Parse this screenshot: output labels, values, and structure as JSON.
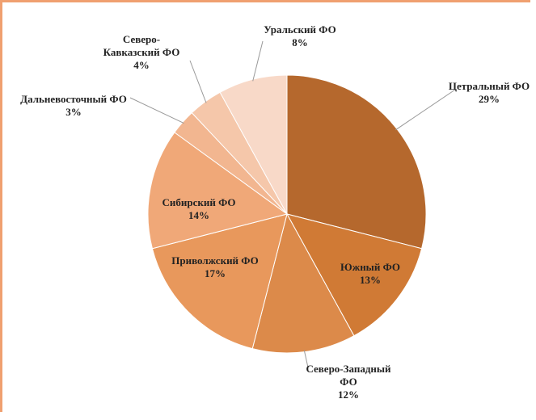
{
  "chart_data": {
    "type": "pie",
    "categories": [
      "Цетральный ФО",
      "Южный ФО",
      "Северо-Западный ФО",
      "Приволжский ФО",
      "Сибирский ФО",
      "Дальневосточный ФО",
      "Северо-Кавказский ФО",
      "Уральский ФО"
    ],
    "values": [
      29,
      13,
      12,
      17,
      14,
      3,
      4,
      8
    ],
    "value_labels": [
      "29%",
      "13%",
      "12%",
      "17%",
      "14%",
      "3%",
      "4%",
      "8%"
    ],
    "colors": [
      "#b5682d",
      "#d07a35",
      "#dc8a4a",
      "#e8985c",
      "#f0a878",
      "#f2b690",
      "#f5c7aa",
      "#f8d9c8"
    ]
  }
}
